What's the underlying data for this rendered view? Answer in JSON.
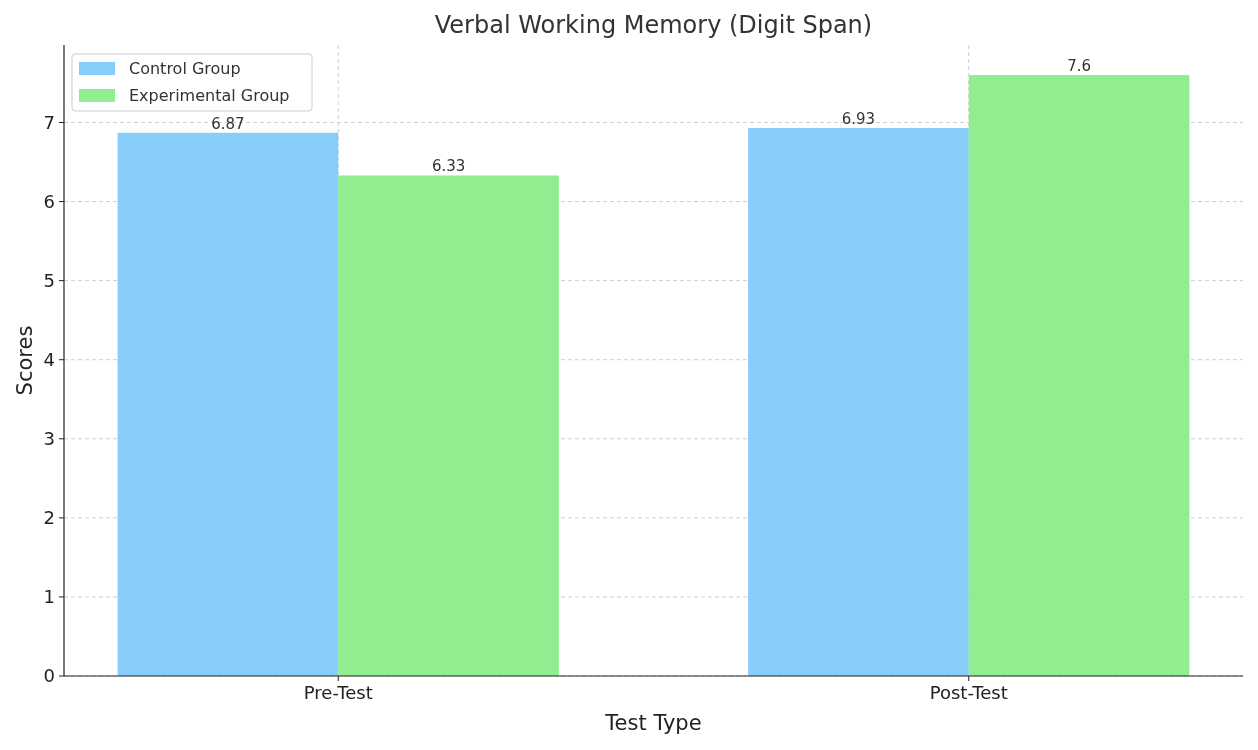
{
  "chart_data": {
    "type": "bar",
    "title": "Verbal Working Memory (Digit Span)",
    "xlabel": "Test Type",
    "ylabel": "Scores",
    "categories": [
      "Pre-Test",
      "Post-Test"
    ],
    "series": [
      {
        "name": "Control Group",
        "color": "#87cefa",
        "values": [
          6.87,
          6.93
        ]
      },
      {
        "name": "Experimental Group",
        "color": "#90ee90",
        "values": [
          6.33,
          7.6
        ]
      }
    ],
    "ylim": [
      0,
      7.98
    ],
    "yticks": [
      0,
      1,
      2,
      3,
      4,
      5,
      6,
      7
    ],
    "grid": true,
    "legend": "top left",
    "data_labels": true
  }
}
